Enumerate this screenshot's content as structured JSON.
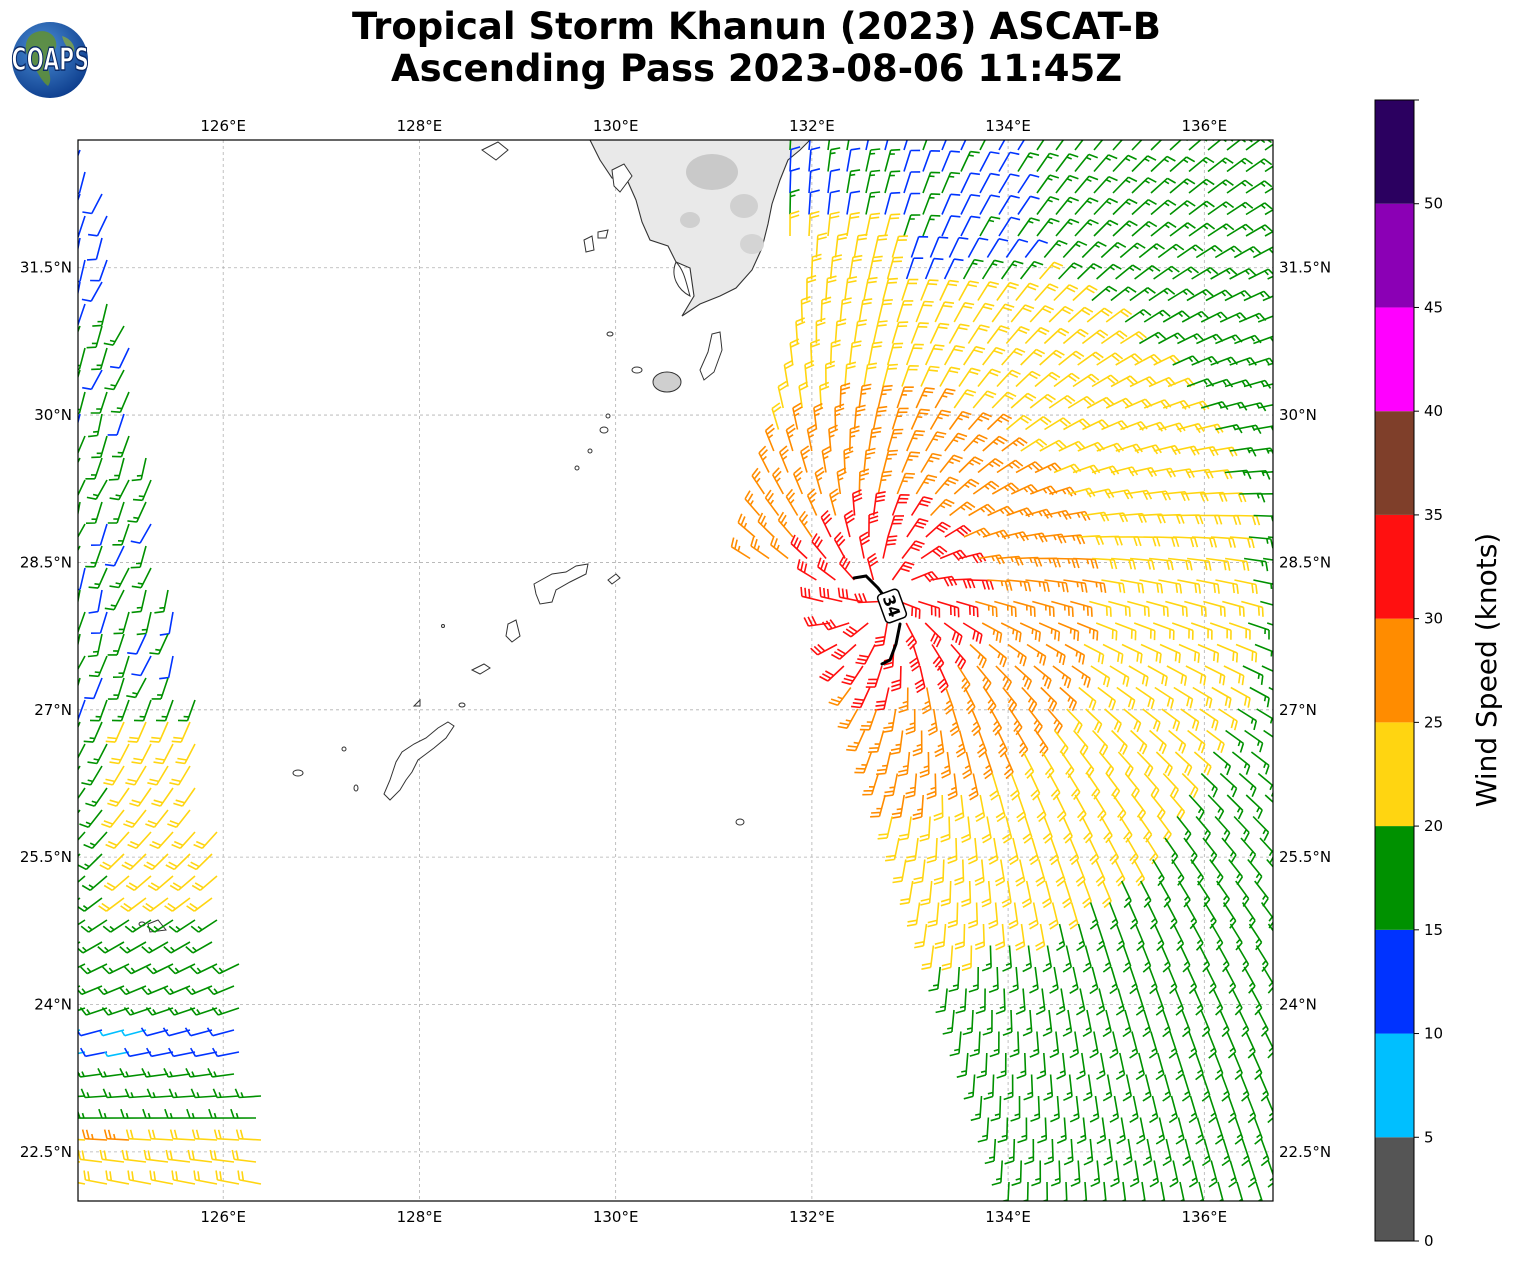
{
  "header": {
    "title_line1": "Tropical Storm Khanun (2023) ASCAT-B",
    "title_line2": "Ascending Pass 2023-08-06 11:45Z",
    "logo_text": "COAPS"
  },
  "map": {
    "lon_ticks": [
      {
        "lon": 126,
        "label": "126°E"
      },
      {
        "lon": 128,
        "label": "128°E"
      },
      {
        "lon": 130,
        "label": "130°E"
      },
      {
        "lon": 132,
        "label": "132°E"
      },
      {
        "lon": 134,
        "label": "134°E"
      },
      {
        "lon": 136,
        "label": "136°E"
      }
    ],
    "lat_ticks": [
      {
        "lat": 31.5,
        "label": "31.5°N"
      },
      {
        "lat": 30.0,
        "label": "30°N"
      },
      {
        "lat": 28.5,
        "label": "28.5°N"
      },
      {
        "lat": 27.0,
        "label": "27°N"
      },
      {
        "lat": 25.5,
        "label": "25.5°N"
      },
      {
        "lat": 24.0,
        "label": "24°N"
      },
      {
        "lat": 22.5,
        "label": "22.5°N"
      }
    ],
    "lon_range": [
      124.52,
      136.7
    ],
    "lat_range": [
      22.0,
      32.8
    ],
    "contour_label": "34"
  },
  "colorbar": {
    "label": "Wind Speed (knots)",
    "ticks": [
      "0",
      "5",
      "10",
      "15",
      "20",
      "25",
      "30",
      "35",
      "40",
      "45",
      "50"
    ],
    "bins": [
      {
        "from": 0,
        "to": 5,
        "color": "#555555"
      },
      {
        "from": 5,
        "to": 10,
        "color": "#00bfff"
      },
      {
        "from": 10,
        "to": 15,
        "color": "#0033ff"
      },
      {
        "from": 15,
        "to": 20,
        "color": "#009100"
      },
      {
        "from": 20,
        "to": 25,
        "color": "#ffd511"
      },
      {
        "from": 25,
        "to": 30,
        "color": "#ff8c00"
      },
      {
        "from": 30,
        "to": 35,
        "color": "#ff1010"
      },
      {
        "from": 35,
        "to": 40,
        "color": "#7f3f2a"
      },
      {
        "from": 40,
        "to": 45,
        "color": "#ff00ff"
      },
      {
        "from": 45,
        "to": 50,
        "color": "#8b00b5"
      },
      {
        "from": 50,
        "to": 55,
        "color": "#2b0060"
      }
    ]
  }
}
